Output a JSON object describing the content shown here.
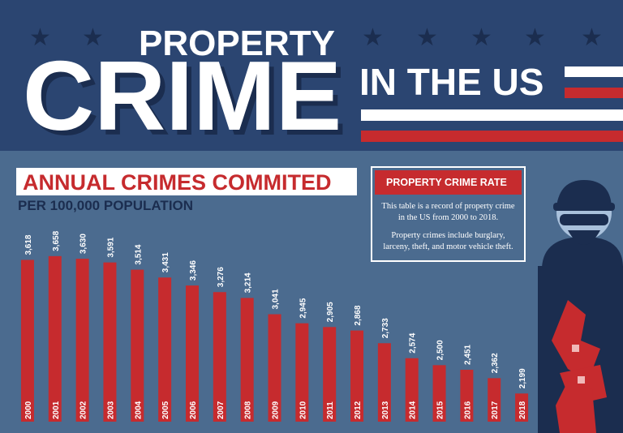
{
  "header": {
    "line1": "PROPERTY",
    "line2": "CRIME",
    "line3": "IN THE US"
  },
  "chart_data": {
    "type": "bar",
    "title": "ANNUAL CRIMES COMMITED",
    "subtitle": "PER 100,000 POPULATION",
    "categories": [
      "2000",
      "2001",
      "2002",
      "2003",
      "2004",
      "2005",
      "2006",
      "2007",
      "2008",
      "2009",
      "2010",
      "2011",
      "2012",
      "2013",
      "2014",
      "2015",
      "2016",
      "2017",
      "2018"
    ],
    "values": [
      3618,
      3658,
      3630,
      3591,
      3514,
      3431,
      3346,
      3276,
      3214,
      3041,
      2945,
      2905,
      2868,
      2733,
      2574,
      2500,
      2451,
      2362,
      2199
    ],
    "value_labels": [
      "3,618",
      "3,658",
      "3,630",
      "3,591",
      "3,514",
      "3,431",
      "3,346",
      "3,276",
      "3,214",
      "3,041",
      "2,945",
      "2,905",
      "2,868",
      "2,733",
      "2,574",
      "2,500",
      "2,451",
      "2,362",
      "2,199"
    ],
    "color": "#c62b2e",
    "ylim": [
      1900,
      3700
    ]
  },
  "info_box": {
    "title": "PROPERTY CRIME RATE",
    "paragraphs": [
      "This table is a record of property crime in the US from 2000 to 2018.",
      "Property crimes include burglary, larceny, theft, and motor vehicle theft."
    ]
  }
}
